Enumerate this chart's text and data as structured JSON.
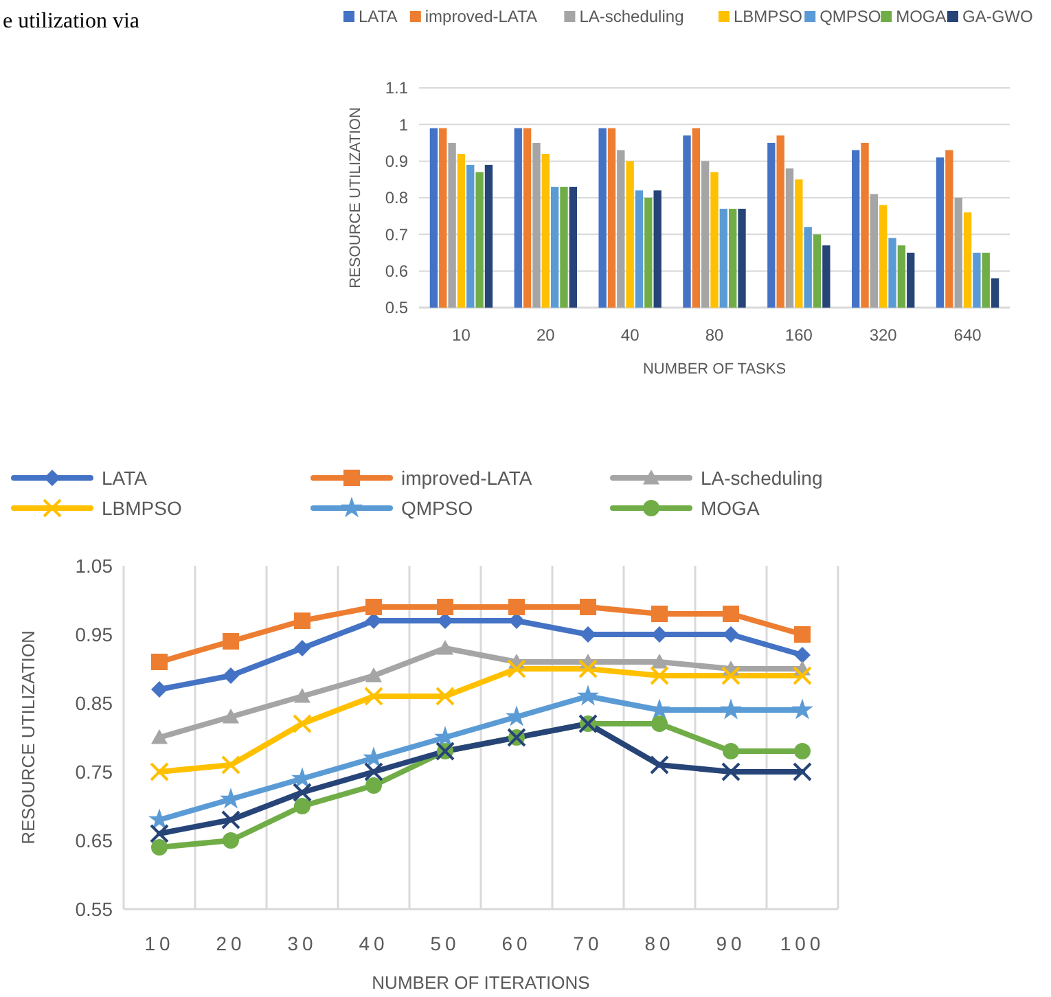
{
  "chart_data": [
    {
      "type": "bar",
      "annotations": [
        "e utilization via"
      ],
      "xlabel": "NUMBER OF TASKS",
      "ylabel": "RESOURCE UTILIZATION",
      "categories": [
        "10",
        "20",
        "40",
        "80",
        "160",
        "320",
        "640"
      ],
      "ylim": [
        0.5,
        1.1
      ],
      "yticks": [
        0.5,
        0.6,
        0.7,
        0.8,
        0.9,
        1,
        1.1
      ],
      "grid": "y",
      "legend": "top",
      "series": [
        {
          "name": "LATA",
          "color": "#4472c4",
          "values": [
            0.99,
            0.99,
            0.99,
            0.97,
            0.95,
            0.93,
            0.91
          ]
        },
        {
          "name": "improved-LATA",
          "color": "#ed7d31",
          "values": [
            0.99,
            0.99,
            0.99,
            0.99,
            0.97,
            0.95,
            0.93
          ]
        },
        {
          "name": "LA-scheduling",
          "color": "#a5a5a5",
          "values": [
            0.95,
            0.95,
            0.93,
            0.9,
            0.88,
            0.81,
            0.8
          ]
        },
        {
          "name": "LBMPSO",
          "color": "#ffc000",
          "values": [
            0.92,
            0.92,
            0.9,
            0.87,
            0.85,
            0.78,
            0.76
          ]
        },
        {
          "name": "QMPSO",
          "color": "#5b9bd5",
          "values": [
            0.89,
            0.83,
            0.82,
            0.77,
            0.72,
            0.69,
            0.65
          ]
        },
        {
          "name": "MOGA",
          "color": "#70ad47",
          "values": [
            0.87,
            0.83,
            0.8,
            0.77,
            0.7,
            0.67,
            0.65
          ]
        },
        {
          "name": "GA-GWO",
          "color": "#264478",
          "values": [
            0.89,
            0.83,
            0.82,
            0.77,
            0.67,
            0.65,
            0.58
          ]
        }
      ]
    },
    {
      "type": "line",
      "xlabel": "NUMBER OF ITERATIONS",
      "ylabel": "RESOURCE UTILIZATION",
      "categories": [
        "10",
        "20",
        "30",
        "40",
        "50",
        "60",
        "70",
        "80",
        "90",
        "100"
      ],
      "ylim": [
        0.55,
        1.05
      ],
      "yticks": [
        0.55,
        0.65,
        0.75,
        0.85,
        0.95,
        1.05
      ],
      "grid": "x",
      "legend": "top left",
      "series": [
        {
          "name": "LATA",
          "color": "#4472c4",
          "marker": "diamond",
          "values": [
            0.87,
            0.89,
            0.93,
            0.97,
            0.97,
            0.97,
            0.95,
            0.95,
            0.95,
            0.92
          ]
        },
        {
          "name": "improved-LATA",
          "color": "#ed7d31",
          "marker": "square",
          "values": [
            0.91,
            0.94,
            0.97,
            0.99,
            0.99,
            0.99,
            0.99,
            0.98,
            0.98,
            0.95
          ]
        },
        {
          "name": "LA-scheduling",
          "color": "#a5a5a5",
          "marker": "triangle",
          "values": [
            0.8,
            0.83,
            0.86,
            0.89,
            0.93,
            0.91,
            0.91,
            0.91,
            0.9,
            0.9
          ]
        },
        {
          "name": "LBMPSO",
          "color": "#ffc000",
          "marker": "cross",
          "values": [
            0.75,
            0.76,
            0.82,
            0.86,
            0.86,
            0.9,
            0.9,
            0.89,
            0.89,
            0.89
          ]
        },
        {
          "name": "QMPSO",
          "color": "#5b9bd5",
          "marker": "star",
          "values": [
            0.68,
            0.71,
            0.74,
            0.77,
            0.8,
            0.83,
            0.86,
            0.84,
            0.84,
            0.84
          ]
        },
        {
          "name": "MOGA",
          "color": "#70ad47",
          "marker": "circle",
          "values": [
            0.64,
            0.65,
            0.7,
            0.73,
            0.78,
            0.8,
            0.82,
            0.82,
            0.78,
            0.78
          ]
        },
        {
          "color": "#264478",
          "marker": "cross",
          "values": [
            0.66,
            0.68,
            0.72,
            0.75,
            0.78,
            0.8,
            0.82,
            0.76,
            0.75,
            0.75
          ]
        }
      ]
    }
  ]
}
